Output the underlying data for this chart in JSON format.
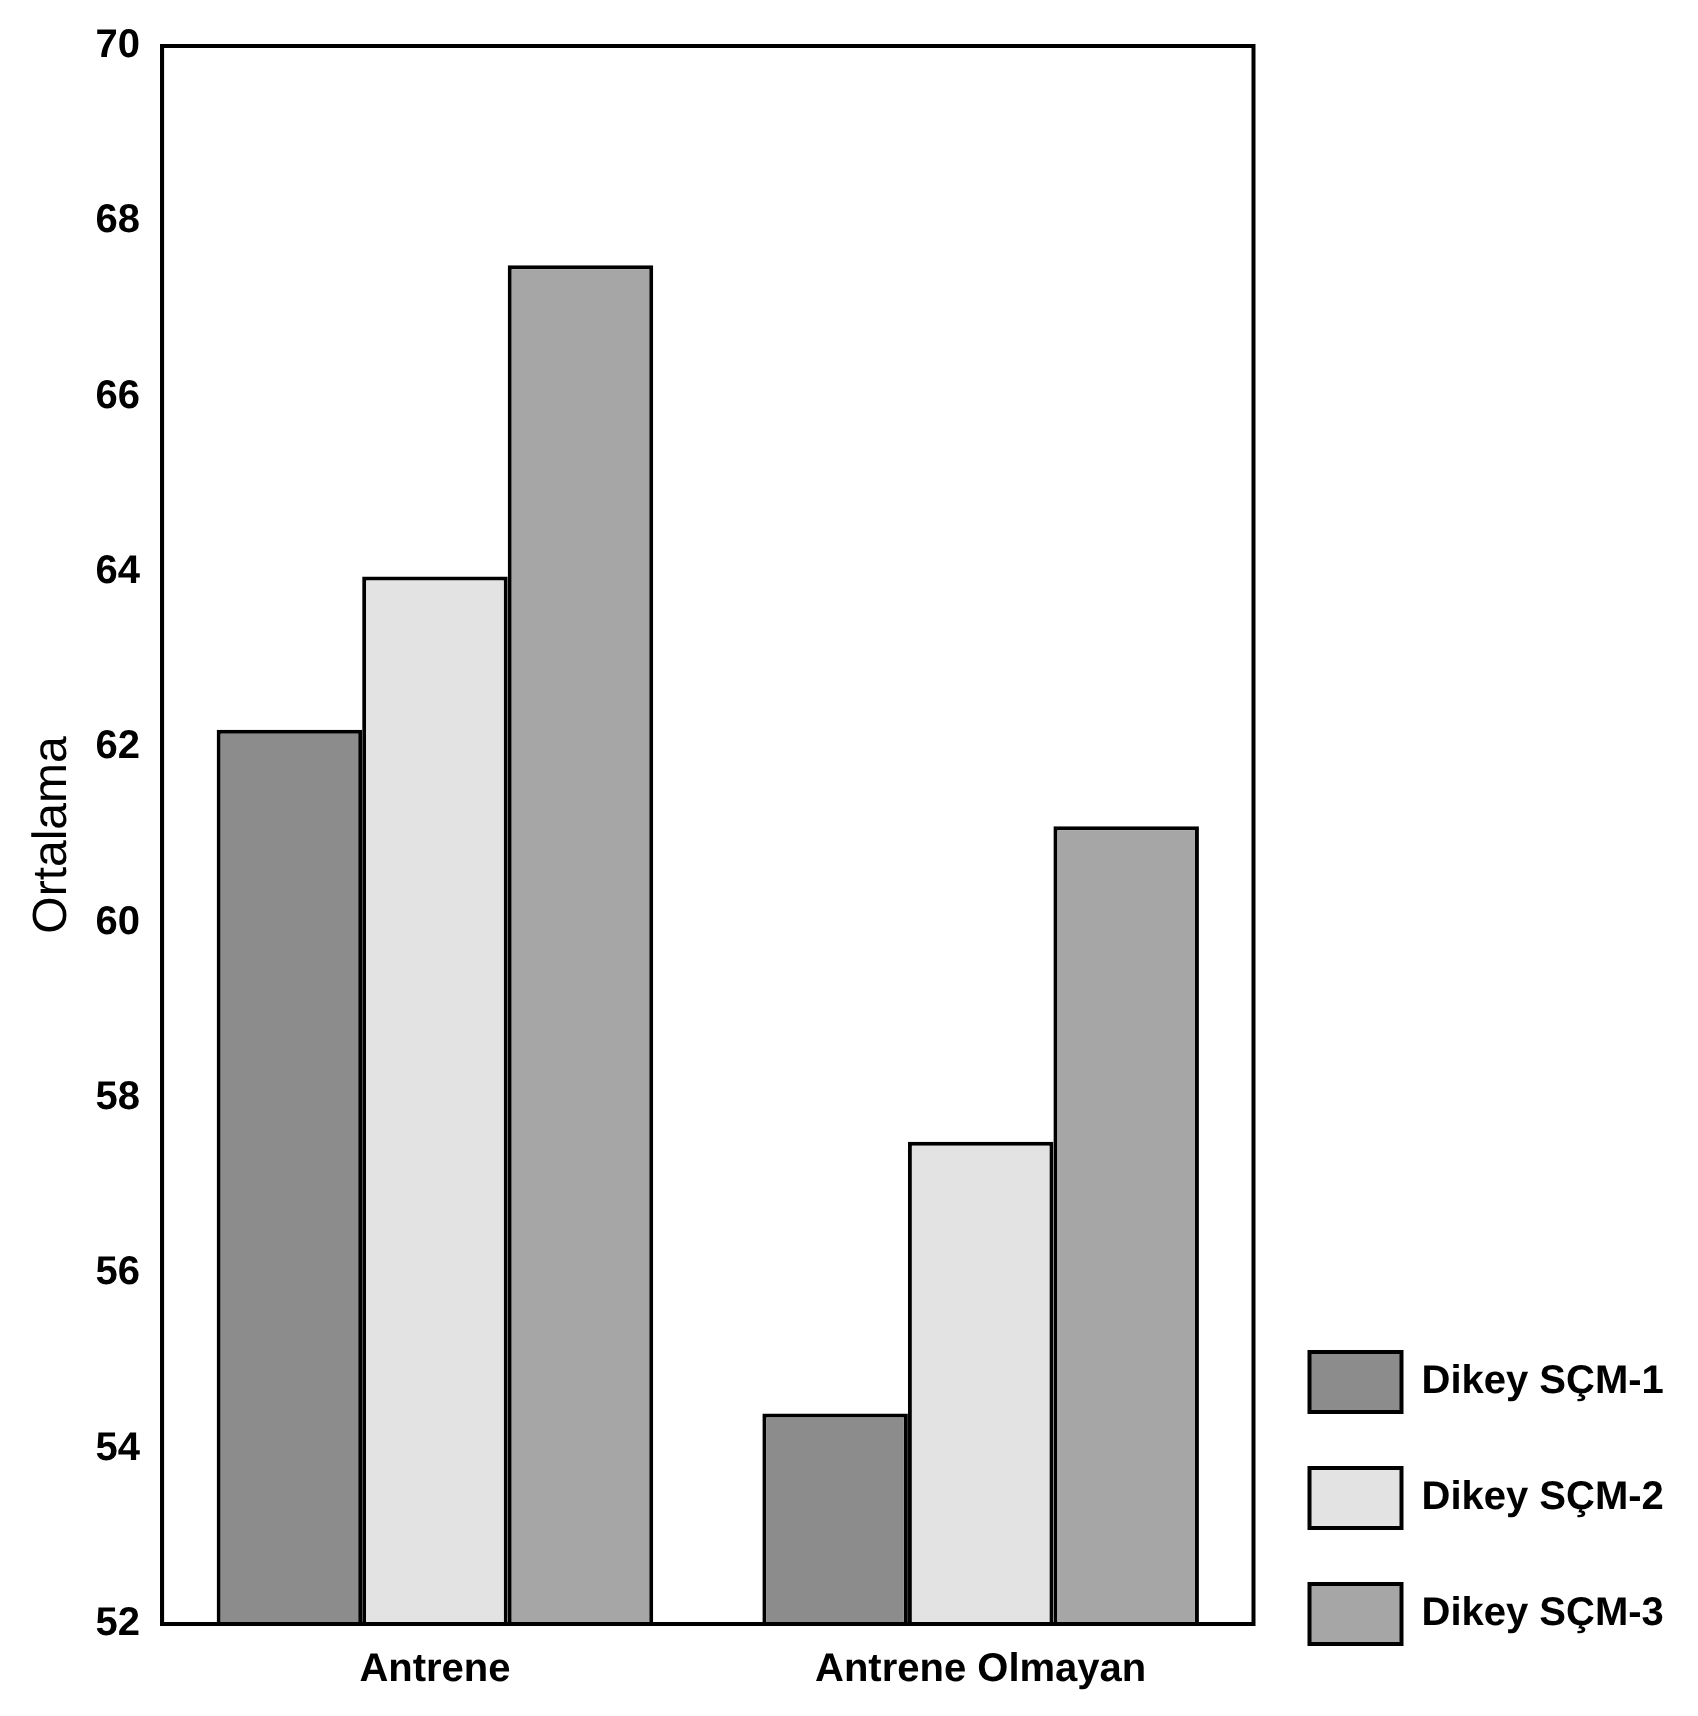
{
  "chart_data": {
    "type": "bar",
    "ylabel": "Ortalama",
    "categories": [
      "Antrene",
      "Antrene Olmayan"
    ],
    "series": [
      {
        "name": "Dikey SÇM-1",
        "color": "#8c8c8c",
        "values": [
          62.2,
          54.4
        ]
      },
      {
        "name": "Dikey SÇM-2",
        "color": "#e3e3e3",
        "values": [
          63.95,
          57.5
        ]
      },
      {
        "name": "Dikey SÇM-3",
        "color": "#a6a6a6",
        "values": [
          67.5,
          61.1
        ]
      }
    ],
    "ylim": [
      52,
      70
    ],
    "yticks": [
      52,
      54,
      56,
      58,
      60,
      62,
      64,
      66,
      68,
      70
    ],
    "grid": false,
    "legend": "bottom right"
  }
}
